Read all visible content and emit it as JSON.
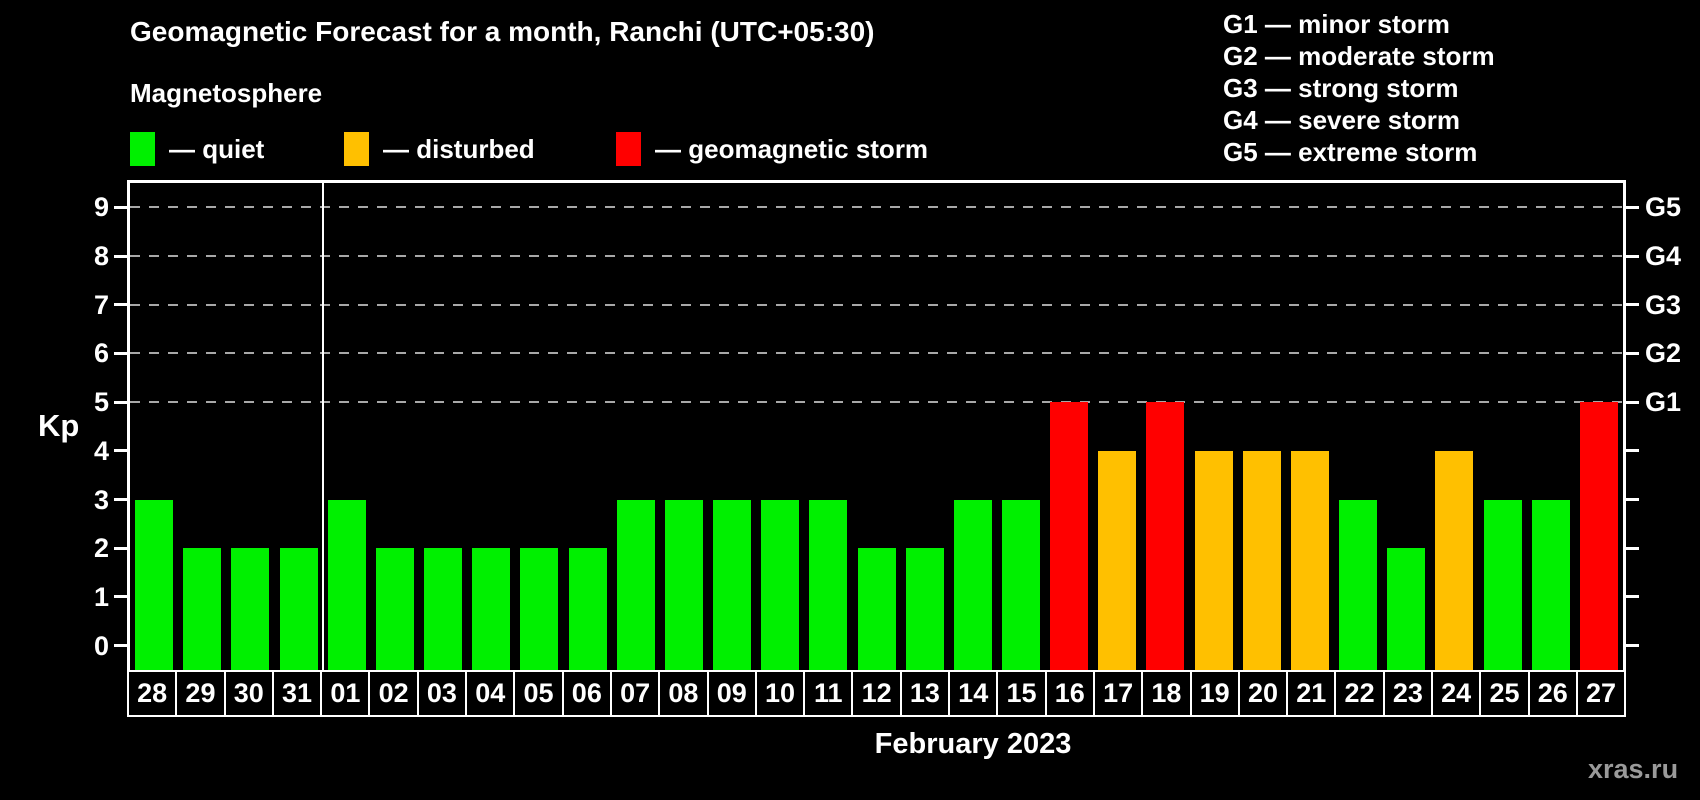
{
  "title": "Geomagnetic Forecast for a month, Ranchi (UTC+05:30)",
  "subtitle": "Magnetosphere",
  "legend": {
    "quiet": {
      "label": "— quiet",
      "color": "#00f000"
    },
    "disturbed": {
      "label": "— disturbed",
      "color": "#ffc000"
    },
    "storm": {
      "label": "— geomagnetic storm",
      "color": "#ff0000"
    }
  },
  "g_legend": [
    "G1 — minor storm",
    "G2 — moderate storm",
    "G3 — strong storm",
    "G4 — severe storm",
    "G5 — extreme storm"
  ],
  "watermark": "xras.ru",
  "chart_data": {
    "type": "bar",
    "title": "Geomagnetic Forecast for a month, Ranchi (UTC+05:30)",
    "ylabel": "Kp",
    "xlabel": "February 2023",
    "ylim": [
      -0.5,
      9.5
    ],
    "yticks": [
      0,
      1,
      2,
      3,
      4,
      5,
      6,
      7,
      8,
      9
    ],
    "gridlines_at": [
      5,
      6,
      7,
      8,
      9
    ],
    "grid": "dashed-gray",
    "right_axis_labels": [
      {
        "kp": 5,
        "label": "G1"
      },
      {
        "kp": 6,
        "label": "G2"
      },
      {
        "kp": 7,
        "label": "G3"
      },
      {
        "kp": 8,
        "label": "G4"
      },
      {
        "kp": 9,
        "label": "G5"
      }
    ],
    "month_separator_after_index": 3,
    "categories": [
      "28",
      "29",
      "30",
      "31",
      "01",
      "02",
      "03",
      "04",
      "05",
      "06",
      "07",
      "08",
      "09",
      "10",
      "11",
      "12",
      "13",
      "14",
      "15",
      "16",
      "17",
      "18",
      "19",
      "20",
      "21",
      "22",
      "23",
      "24",
      "25",
      "26",
      "27"
    ],
    "values": [
      3,
      2,
      2,
      2,
      3,
      2,
      2,
      2,
      2,
      2,
      3,
      3,
      3,
      3,
      3,
      2,
      2,
      3,
      3,
      5,
      4,
      5,
      4,
      4,
      4,
      3,
      2,
      4,
      3,
      3,
      5
    ],
    "statuses": [
      "quiet",
      "quiet",
      "quiet",
      "quiet",
      "quiet",
      "quiet",
      "quiet",
      "quiet",
      "quiet",
      "quiet",
      "quiet",
      "quiet",
      "quiet",
      "quiet",
      "quiet",
      "quiet",
      "quiet",
      "quiet",
      "quiet",
      "storm",
      "disturbed",
      "storm",
      "disturbed",
      "disturbed",
      "disturbed",
      "quiet",
      "quiet",
      "disturbed",
      "quiet",
      "quiet",
      "storm"
    ]
  }
}
